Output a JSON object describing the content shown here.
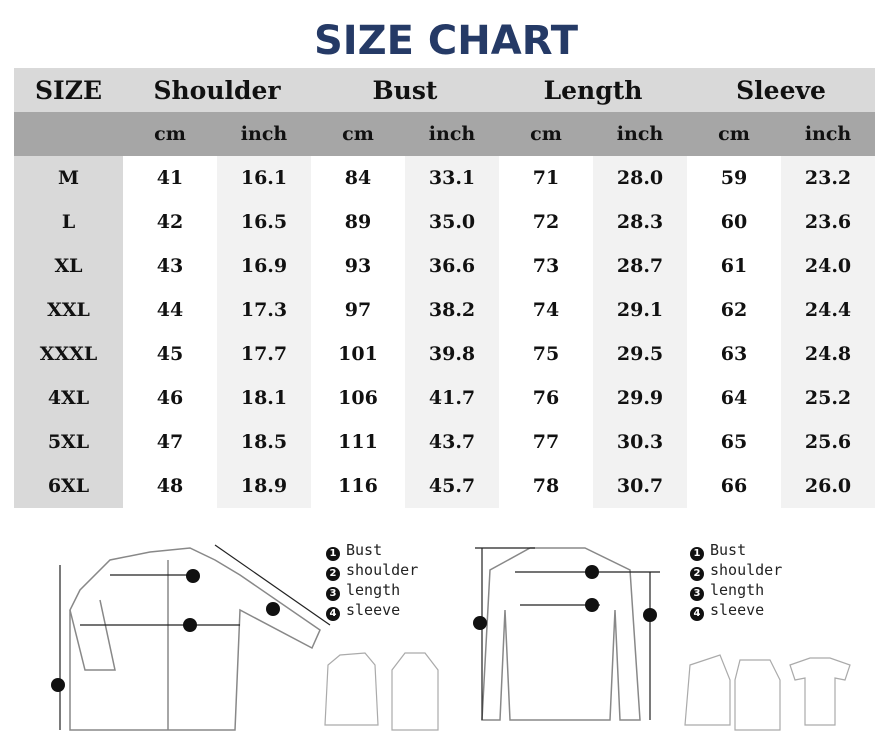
{
  "title": "SIZE CHART",
  "table": {
    "headers": [
      "SIZE",
      "Shoulder",
      "Bust",
      "Length",
      "Sleeve"
    ],
    "units": [
      "cm",
      "inch"
    ],
    "rows": [
      {
        "size": "M",
        "values": [
          "41",
          "16.1",
          "84",
          "33.1",
          "71",
          "28.0",
          "59",
          "23.2"
        ]
      },
      {
        "size": "L",
        "values": [
          "42",
          "16.5",
          "89",
          "35.0",
          "72",
          "28.3",
          "60",
          "23.6"
        ]
      },
      {
        "size": "XL",
        "values": [
          "43",
          "16.9",
          "93",
          "36.6",
          "73",
          "28.7",
          "61",
          "24.0"
        ]
      },
      {
        "size": "XXL",
        "values": [
          "44",
          "17.3",
          "97",
          "38.2",
          "74",
          "29.1",
          "62",
          "24.4"
        ]
      },
      {
        "size": "XXXL",
        "values": [
          "45",
          "17.7",
          "101",
          "39.8",
          "75",
          "29.5",
          "63",
          "24.8"
        ]
      },
      {
        "size": "4XL",
        "values": [
          "46",
          "18.1",
          "106",
          "41.7",
          "76",
          "29.9",
          "64",
          "25.2"
        ]
      },
      {
        "size": "5XL",
        "values": [
          "47",
          "18.5",
          "111",
          "43.7",
          "77",
          "30.3",
          "65",
          "25.6"
        ]
      },
      {
        "size": "6XL",
        "values": [
          "48",
          "18.9",
          "116",
          "45.7",
          "78",
          "30.7",
          "66",
          "26.0"
        ]
      }
    ]
  },
  "legend": {
    "items": [
      {
        "num": "1",
        "label": "Bust"
      },
      {
        "num": "2",
        "label": "shoulder"
      },
      {
        "num": "3",
        "label": "length"
      },
      {
        "num": "4",
        "label": "sleeve"
      }
    ]
  },
  "colors": {
    "title": "#253a66",
    "header": "#d9d9d9",
    "subheader": "#a6a6a6",
    "inch_col": "#f2f2f2"
  }
}
